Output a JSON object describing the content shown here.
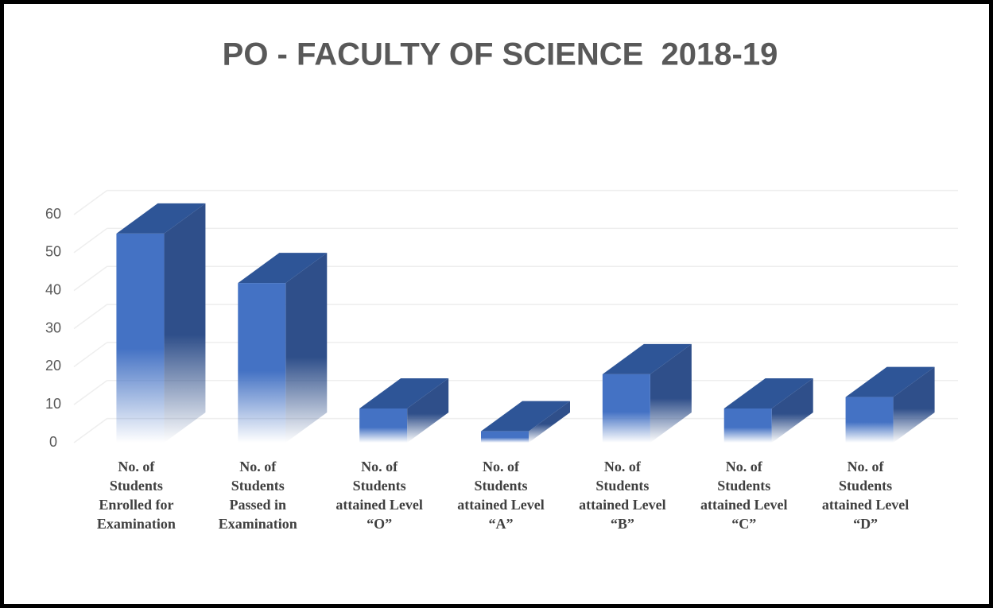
{
  "chart_data": {
    "type": "bar3d",
    "title": "PO - FACULTY OF SCIENCE  2018-19",
    "categories": [
      "No. of Students Enrolled for Examination",
      "No. of Students Passed in Examination",
      "No. of Students attained Level “O”",
      "No. of Students attained Level “A”",
      "No. of Students attained Level “B”",
      "No. of Students attained Level “C”",
      "No. of Students attained Level “D”"
    ],
    "values": [
      55,
      42,
      9,
      3,
      18,
      9,
      12
    ],
    "color": "#4472c4",
    "ylim": [
      0,
      60
    ],
    "yticks": [
      0,
      10,
      20,
      30,
      40,
      50,
      60
    ],
    "grid": true
  }
}
